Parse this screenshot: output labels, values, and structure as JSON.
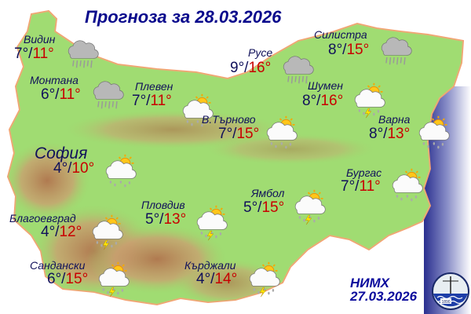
{
  "title": "Прогноза за 28.03.2026",
  "temp_separator": "/",
  "colors": {
    "min_temp": "#10105a",
    "max_temp": "#c80000",
    "title": "#0a0a8c",
    "sea": "#2a2f8f",
    "land": "#8fd66a"
  },
  "cities": [
    {
      "name": "Видин",
      "min": "7°",
      "max": "11°",
      "icon": "cloud-rain-icon"
    },
    {
      "name": "Монтана",
      "min": "6°",
      "max": "11°",
      "icon": "cloud-rain-icon"
    },
    {
      "name": "Плевен",
      "min": "7°",
      "max": "11°",
      "icon": "sun-cloud-rain-icon"
    },
    {
      "name": "Русе",
      "min": "9°",
      "max": "16°",
      "icon": "cloud-rain-icon"
    },
    {
      "name": "Силистра",
      "min": "8°",
      "max": "15°",
      "icon": "cloud-rain-icon"
    },
    {
      "name": "Шумен",
      "min": "8°",
      "max": "16°",
      "icon": "sun-cloud-thunderstorm-icon"
    },
    {
      "name": "В.Търново",
      "min": "7°",
      "max": "15°",
      "icon": "sun-cloud-rain-icon"
    },
    {
      "name": "Варна",
      "min": "8°",
      "max": "13°",
      "icon": "sun-cloud-rain-icon"
    },
    {
      "name": "София",
      "min": "4°",
      "max": "10°",
      "icon": "sun-cloud-rain-icon"
    },
    {
      "name": "Бургас",
      "min": "7°",
      "max": "11°",
      "icon": "sun-cloud-rain-icon"
    },
    {
      "name": "Ямбол",
      "min": "5°",
      "max": "15°",
      "icon": "sun-cloud-thunderstorm-icon"
    },
    {
      "name": "Пловдив",
      "min": "5°",
      "max": "13°",
      "icon": "sun-cloud-thunderstorm-icon"
    },
    {
      "name": "Благоевград",
      "min": "4°",
      "max": "12°",
      "icon": "sun-cloud-thunderstorm-icon"
    },
    {
      "name": "Сандански",
      "min": "6°",
      "max": "15°",
      "icon": "sun-cloud-thunderstorm-icon"
    },
    {
      "name": "Кърджали",
      "min": "4°",
      "max": "14°",
      "icon": "sun-cloud-thunderstorm-icon"
    }
  ],
  "footer": {
    "org": "НИМХ",
    "issued": "27.03.2026",
    "logo_year": "1890"
  }
}
